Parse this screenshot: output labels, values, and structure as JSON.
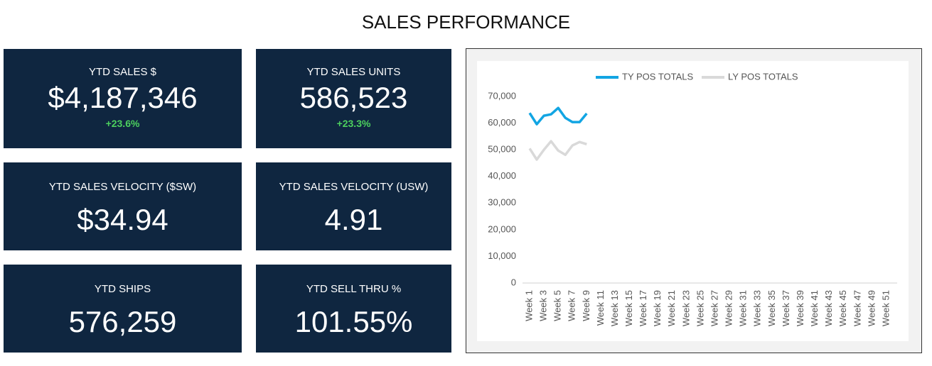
{
  "header": {
    "title": "SALES PERFORMANCE"
  },
  "cards": [
    {
      "label": "YTD SALES $",
      "value": "$4,187,346",
      "change": "+23.6%"
    },
    {
      "label": "YTD SALES UNITS",
      "value": "586,523",
      "change": "+23.3%"
    },
    {
      "label": "YTD SALES VELOCITY ($SW)",
      "value": "$34.94"
    },
    {
      "label": "YTD SALES VELOCITY (USW)",
      "value": "4.91"
    },
    {
      "label": "YTD SHIPS",
      "value": "576,259"
    },
    {
      "label": "YTD SELL THRU %",
      "value": "101.55%"
    }
  ],
  "chart_data": {
    "type": "line",
    "categories": [
      "Week 1",
      null,
      "Week 3",
      null,
      "Week 5",
      null,
      "Week 7",
      null,
      "Week 9",
      null,
      "Week 11",
      null,
      "Week 13",
      null,
      "Week 15",
      null,
      "Week 17",
      null,
      "Week 19",
      null,
      "Week 21",
      null,
      "Week 23",
      null,
      "Week 25",
      null,
      "Week 27",
      null,
      "Week 29",
      null,
      "Week 31",
      null,
      "Week 33",
      null,
      "Week 35",
      null,
      "Week 37",
      null,
      "Week 39",
      null,
      "Week 41",
      null,
      "Week 43",
      null,
      "Week 45",
      null,
      "Week 47",
      null,
      "Week 49",
      null,
      "Week 51",
      null
    ],
    "series": [
      {
        "name": "TY POS TOTALS",
        "color": "#12a5e3",
        "values": [
          63800,
          59600,
          62800,
          63300,
          65700,
          62000,
          60400,
          60400,
          63600,
          null,
          null,
          null,
          null,
          null,
          null,
          null,
          null,
          null,
          null,
          null,
          null,
          null,
          null,
          null,
          null,
          null,
          null,
          null,
          null,
          null,
          null,
          null,
          null,
          null,
          null,
          null,
          null,
          null,
          null,
          null,
          null,
          null,
          null,
          null,
          null,
          null,
          null,
          null,
          null,
          null,
          null,
          null
        ]
      },
      {
        "name": "LY POS TOTALS",
        "color": "#d9d9d9",
        "values": [
          50500,
          46300,
          50000,
          53200,
          49700,
          48100,
          51600,
          52900,
          52100,
          null,
          null,
          null,
          null,
          null,
          null,
          null,
          null,
          null,
          null,
          null,
          null,
          null,
          null,
          null,
          null,
          null,
          null,
          null,
          null,
          null,
          null,
          null,
          null,
          null,
          null,
          null,
          null,
          null,
          null,
          null,
          null,
          null,
          null,
          null,
          null,
          null,
          null,
          null,
          null,
          null,
          null,
          null
        ]
      }
    ],
    "ylim": [
      0,
      70000
    ],
    "yticks": [
      0,
      {
        "value": 10000,
        "label": "10,000"
      },
      {
        "value": 20000,
        "label": "20,000"
      },
      {
        "value": 30000,
        "label": "30,000"
      },
      {
        "value": 40000,
        "label": "40,000"
      },
      {
        "value": 50000,
        "label": "50,000"
      },
      {
        "value": 60000,
        "label": "60,000"
      },
      {
        "value": 70000,
        "label": "70,000"
      }
    ],
    "legend": "top",
    "grid": false
  }
}
